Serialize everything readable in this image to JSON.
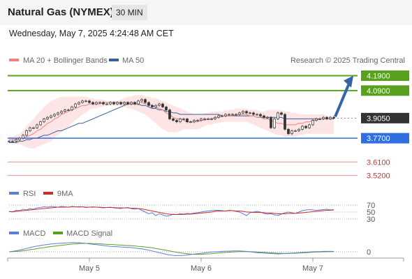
{
  "header": {
    "instrument": "Natural Gas (NYMEX)",
    "timeframe": "30 MIN",
    "datetime": "Wednesday, May 7, 2025 4:24:48 AM CET"
  },
  "legend": {
    "ma20": "MA 20 + Bollinger Bands",
    "ma50": "MA 50",
    "credit": "Research © 2025 Trading Central",
    "rsi": "RSI",
    "rsi_ma": "9MA",
    "macd": "MACD",
    "macd_signal": "MACD Signal"
  },
  "colors": {
    "resistance": "#5aa020",
    "support": "#2f6fe0",
    "price_tag": "#333333",
    "target_line": "#f2a0a0",
    "ma20": "#f08080",
    "band_fill": "#fcdcdc",
    "ma50": "#3a5f9a",
    "arrow": "#3565a8",
    "rsi": "#5b7fd6",
    "rsi_ma": "#d42a2a",
    "macd": "#5b7fd6",
    "macd_signal": "#5aa020"
  },
  "chart_data": [
    {
      "type": "line",
      "name": "price",
      "ylim": [
        3.48,
        4.23
      ],
      "x_ticks": [
        "May 5",
        "May 6",
        "May 7"
      ],
      "levels": [
        {
          "value": 4.19,
          "label": "4.1900",
          "kind": "resistance"
        },
        {
          "value": 4.09,
          "label": "4.0900",
          "kind": "resistance"
        },
        {
          "value": 3.905,
          "label": "3.9050",
          "kind": "last"
        },
        {
          "value": 3.77,
          "label": "3.7700",
          "kind": "support"
        },
        {
          "value": 3.61,
          "label": "3.6100",
          "kind": "target"
        },
        {
          "value": 3.52,
          "label": "3.5200",
          "kind": "target"
        }
      ],
      "close": [
        3.75,
        3.75,
        3.76,
        3.77,
        3.79,
        3.82,
        3.84,
        3.84,
        3.86,
        3.88,
        3.9,
        3.91,
        3.92,
        3.93,
        3.94,
        3.95,
        3.96,
        3.96,
        3.98,
        4.0,
        4.01,
        4.02,
        4.02,
        4.01,
        4.0,
        4.01,
        4.01,
        4.0,
        4.0,
        4.01,
        4.0,
        4.01,
        4.0,
        4.01,
        4.0,
        4.01,
        4.0,
        4.02,
        4.03,
        4.01,
        3.99,
        3.98,
        3.99,
        4.0,
        3.98,
        3.96,
        3.9,
        3.89,
        3.88,
        3.9,
        3.9,
        3.88,
        3.88,
        3.89,
        3.89,
        3.9,
        3.9,
        3.9,
        3.9,
        3.91,
        3.92,
        3.92,
        3.93,
        3.93,
        3.93,
        3.93,
        3.94,
        3.95,
        3.94,
        3.94,
        3.93,
        3.93,
        3.92,
        3.91,
        3.91,
        3.84,
        3.9,
        3.94,
        3.93,
        3.83,
        3.8,
        3.82,
        3.82,
        3.83,
        3.85,
        3.84,
        3.86,
        3.89,
        3.9,
        3.9,
        3.91,
        3.9,
        3.91,
        3.905
      ],
      "ma20": [
        3.76,
        3.76,
        3.76,
        3.77,
        3.77,
        3.78,
        3.79,
        3.8,
        3.82,
        3.83,
        3.85,
        3.87,
        3.88,
        3.9,
        3.91,
        3.93,
        3.94,
        3.95,
        3.96,
        3.97,
        3.98,
        3.99,
        3.99,
        4.0,
        4.0,
        4.0,
        4.0,
        4.01,
        4.01,
        4.01,
        4.01,
        4.01,
        4.01,
        4.01,
        4.01,
        4.01,
        4.01,
        4.01,
        4.01,
        4.0,
        4.0,
        3.99,
        3.98,
        3.97,
        3.96,
        3.94,
        3.93,
        3.91,
        3.9,
        3.9,
        3.89,
        3.88,
        3.88,
        3.88,
        3.88,
        3.89,
        3.89,
        3.9,
        3.9,
        3.91,
        3.91,
        3.92,
        3.92,
        3.92,
        3.92,
        3.93,
        3.93,
        3.93,
        3.93,
        3.92,
        3.92,
        3.91,
        3.91,
        3.9,
        3.9,
        3.89,
        3.88,
        3.87,
        3.87,
        3.86,
        3.86,
        3.86,
        3.86,
        3.87,
        3.87,
        3.88,
        3.88,
        3.89,
        3.89,
        3.9,
        3.9,
        3.9,
        3.9,
        3.905
      ],
      "band_upper": [
        3.78,
        3.78,
        3.79,
        3.8,
        3.82,
        3.85,
        3.88,
        3.9,
        3.93,
        3.95,
        3.98,
        4.0,
        4.02,
        4.03,
        4.04,
        4.05,
        4.05,
        4.05,
        4.05,
        4.05,
        4.05,
        4.05,
        4.05,
        4.04,
        4.04,
        4.03,
        4.03,
        4.03,
        4.02,
        4.02,
        4.02,
        4.02,
        4.03,
        4.04,
        4.05,
        4.05,
        4.06,
        4.06,
        4.06,
        4.05,
        4.05,
        4.04,
        4.04,
        4.03,
        4.02,
        4.01,
        4.0,
        3.99,
        3.98,
        3.97,
        3.96,
        3.95,
        3.94,
        3.93,
        3.93,
        3.93,
        3.94,
        3.94,
        3.95,
        3.95,
        3.95,
        3.95,
        3.96,
        3.96,
        3.96,
        3.97,
        3.97,
        3.97,
        3.97,
        3.96,
        3.96,
        3.96,
        3.95,
        3.95,
        3.96,
        3.96,
        3.96,
        3.96,
        3.96,
        3.95,
        3.95,
        3.94,
        3.94,
        3.93,
        3.93,
        3.93,
        3.93,
        3.93,
        3.93,
        3.93,
        3.93,
        3.92,
        3.92,
        3.92
      ],
      "band_lower": [
        3.74,
        3.74,
        3.73,
        3.73,
        3.72,
        3.71,
        3.7,
        3.7,
        3.71,
        3.72,
        3.73,
        3.74,
        3.75,
        3.77,
        3.79,
        3.81,
        3.83,
        3.85,
        3.87,
        3.89,
        3.91,
        3.93,
        3.94,
        3.96,
        3.97,
        3.97,
        3.98,
        3.98,
        3.99,
        3.99,
        3.99,
        3.99,
        3.99,
        3.98,
        3.97,
        3.97,
        3.96,
        3.95,
        3.94,
        3.93,
        3.91,
        3.89,
        3.87,
        3.85,
        3.83,
        3.82,
        3.81,
        3.81,
        3.81,
        3.82,
        3.83,
        3.83,
        3.83,
        3.83,
        3.83,
        3.84,
        3.85,
        3.86,
        3.86,
        3.87,
        3.87,
        3.88,
        3.88,
        3.88,
        3.88,
        3.88,
        3.88,
        3.88,
        3.88,
        3.87,
        3.86,
        3.85,
        3.84,
        3.83,
        3.82,
        3.81,
        3.8,
        3.79,
        3.79,
        3.78,
        3.78,
        3.78,
        3.78,
        3.79,
        3.79,
        3.8,
        3.8,
        3.8,
        3.8,
        3.8,
        3.8,
        3.8,
        3.8,
        3.8
      ],
      "ma50": [
        3.74,
        3.74,
        3.74,
        3.75,
        3.75,
        3.76,
        3.76,
        3.77,
        3.77,
        3.78,
        3.79,
        3.79,
        3.8,
        3.81,
        3.82,
        3.82,
        3.83,
        3.84,
        3.85,
        3.86,
        3.87,
        3.87,
        3.88,
        3.89,
        3.9,
        3.91,
        3.92,
        3.93,
        3.94,
        3.95,
        3.96,
        3.97,
        3.98,
        3.99,
        4.0,
        4.0,
        4.0,
        4.0,
        3.99,
        3.99,
        3.98,
        3.97,
        3.97,
        3.96,
        3.96,
        3.95,
        3.95,
        3.94,
        3.94,
        3.93,
        3.93,
        3.93,
        3.93,
        3.93,
        3.93,
        3.93,
        3.93,
        3.93,
        3.93,
        3.93,
        3.93,
        3.92,
        3.92,
        3.92,
        3.92,
        3.92,
        3.92,
        3.92,
        3.92,
        3.92,
        3.92,
        3.91,
        3.91,
        3.91,
        3.91,
        3.91,
        3.91,
        3.91,
        3.91,
        3.9,
        3.9,
        3.9,
        3.9,
        3.9,
        3.9,
        3.9,
        3.9,
        3.9,
        3.9,
        3.9,
        3.9,
        3.9,
        3.9,
        3.9
      ]
    },
    {
      "type": "line",
      "name": "RSI",
      "ylim": [
        20,
        80
      ],
      "levels": [
        70,
        50,
        30
      ],
      "level_labels": [
        "70",
        "50",
        "30"
      ],
      "rsi": [
        52,
        50,
        55,
        54,
        58,
        56,
        60,
        58,
        62,
        63,
        65,
        64,
        66,
        65,
        64,
        66,
        65,
        64,
        66,
        65,
        64,
        65,
        63,
        64,
        65,
        64,
        63,
        62,
        63,
        64,
        62,
        61,
        60,
        62,
        63,
        60,
        58,
        60,
        55,
        50,
        45,
        48,
        40,
        45,
        42,
        38,
        40,
        44,
        43,
        45,
        44,
        46,
        45,
        47,
        48,
        50,
        52,
        53,
        54,
        55,
        55,
        54,
        53,
        55,
        54,
        52,
        50,
        45,
        40,
        48,
        50,
        52,
        50,
        46,
        44,
        45,
        42,
        40,
        44,
        48,
        50,
        48,
        46,
        50,
        54,
        56,
        57,
        56,
        55,
        56,
        57,
        58,
        56,
        57
      ],
      "ma9": [
        51,
        51,
        52,
        53,
        54,
        55,
        56,
        57,
        58,
        59,
        60,
        61,
        62,
        63,
        64,
        64,
        64,
        64,
        65,
        65,
        65,
        65,
        64,
        64,
        64,
        64,
        64,
        63,
        63,
        63,
        63,
        62,
        62,
        62,
        62,
        61,
        61,
        60,
        59,
        57,
        55,
        53,
        51,
        49,
        47,
        45,
        44,
        43,
        43,
        43,
        43,
        44,
        44,
        45,
        46,
        47,
        48,
        49,
        50,
        52,
        53,
        53,
        53,
        54,
        54,
        53,
        53,
        52,
        50,
        50,
        49,
        49,
        49,
        48,
        47,
        47,
        46,
        45,
        45,
        45,
        46,
        46,
        46,
        47,
        48,
        49,
        50,
        51,
        52,
        53,
        54,
        55,
        55,
        56
      ]
    },
    {
      "type": "line",
      "name": "MACD",
      "ylim": [
        -0.04,
        0.06
      ],
      "levels": [
        0
      ],
      "level_labels": [
        "0"
      ],
      "macd": [
        0.0,
        0.002,
        0.005,
        0.008,
        0.012,
        0.016,
        0.02,
        0.024,
        0.027,
        0.03,
        0.033,
        0.035,
        0.037,
        0.039,
        0.04,
        0.041,
        0.042,
        0.043,
        0.044,
        0.044,
        0.043,
        0.042,
        0.04,
        0.038,
        0.036,
        0.034,
        0.032,
        0.03,
        0.028,
        0.026,
        0.025,
        0.024,
        0.023,
        0.022,
        0.021,
        0.02,
        0.018,
        0.016,
        0.014,
        0.011,
        0.008,
        0.004,
        0.0,
        -0.004,
        -0.008,
        -0.012,
        -0.015,
        -0.017,
        -0.018,
        -0.018,
        -0.017,
        -0.015,
        -0.013,
        -0.011,
        -0.009,
        -0.007,
        -0.005,
        -0.003,
        -0.001,
        0.0,
        0.001,
        0.002,
        0.003,
        0.003,
        0.004,
        0.004,
        0.004,
        0.003,
        0.002,
        0.0,
        -0.002,
        -0.004,
        -0.005,
        -0.006,
        -0.007,
        -0.008,
        -0.009,
        -0.01,
        -0.009,
        -0.008,
        -0.007,
        -0.006,
        -0.005,
        -0.004,
        -0.003,
        -0.002,
        -0.001,
        0.0,
        0.001,
        0.001,
        0.002,
        0.002,
        0.002,
        0.002
      ],
      "signal": [
        0.0,
        0.001,
        0.002,
        0.003,
        0.005,
        0.007,
        0.01,
        0.012,
        0.015,
        0.018,
        0.02,
        0.023,
        0.025,
        0.027,
        0.029,
        0.031,
        0.033,
        0.035,
        0.037,
        0.038,
        0.039,
        0.04,
        0.04,
        0.04,
        0.039,
        0.039,
        0.038,
        0.037,
        0.036,
        0.035,
        0.034,
        0.033,
        0.032,
        0.031,
        0.03,
        0.029,
        0.028,
        0.026,
        0.025,
        0.023,
        0.021,
        0.019,
        0.016,
        0.013,
        0.01,
        0.007,
        0.004,
        0.001,
        -0.002,
        -0.005,
        -0.007,
        -0.009,
        -0.011,
        -0.012,
        -0.012,
        -0.012,
        -0.011,
        -0.01,
        -0.009,
        -0.007,
        -0.006,
        -0.004,
        -0.003,
        -0.002,
        -0.001,
        0.0,
        0.001,
        0.001,
        0.001,
        0.001,
        0.0,
        -0.001,
        -0.002,
        -0.003,
        -0.004,
        -0.005,
        -0.006,
        -0.007,
        -0.007,
        -0.008,
        -0.008,
        -0.007,
        -0.007,
        -0.006,
        -0.005,
        -0.004,
        -0.003,
        -0.002,
        -0.001,
        -0.001,
        0.0,
        0.0,
        0.001,
        0.001
      ]
    }
  ]
}
